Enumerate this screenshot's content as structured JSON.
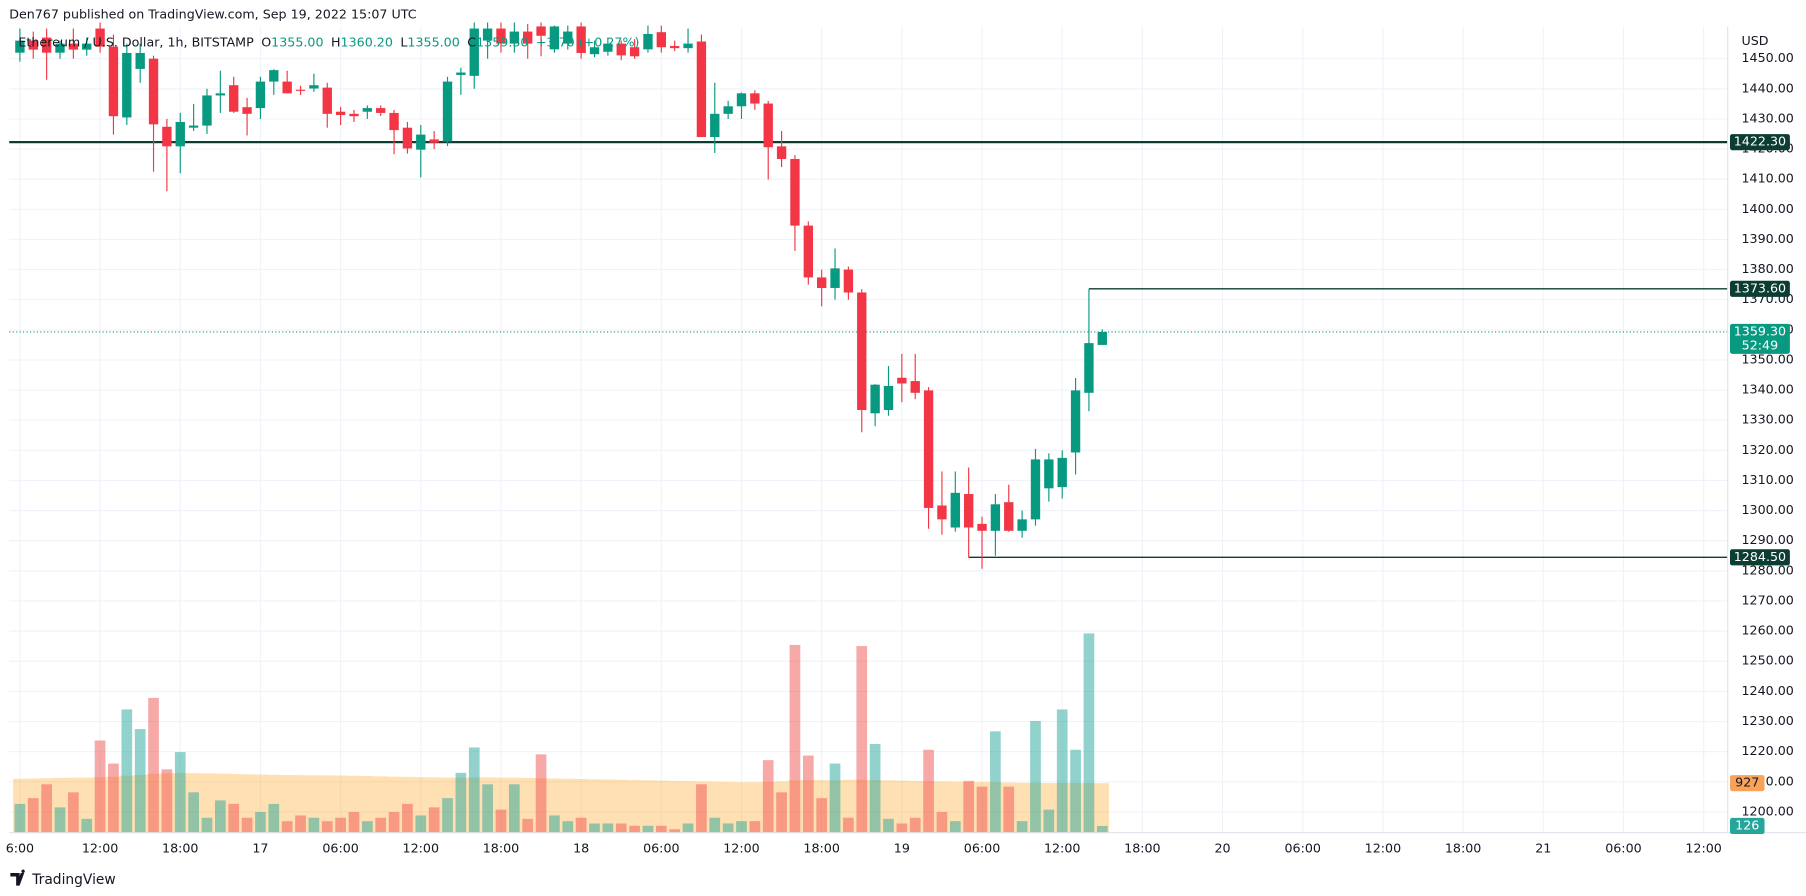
{
  "chart_data": {
    "type": "candlestick",
    "header": "Den767 published on TradingView.com, Sep 19, 2022 15:07 UTC",
    "legend": {
      "symbol": "Ethereum / U.S. Dollar, 1h, BITSTAMP",
      "o": "O",
      "open": "1355.00",
      "h": "H",
      "high": "1360.20",
      "l": "L",
      "low": "1355.00",
      "c": "C",
      "close": "1359.30",
      "change": "+3.70 (+0.27%)"
    },
    "currency": "USD",
    "footer": "TradingView",
    "up_color": "#089981",
    "down_color": "#f23645",
    "open": [
      1452,
      1456,
      1457,
      1452,
      1455,
      1453,
      1460,
      1454,
      1430.5,
      1446.6,
      1450,
      1427.4,
      1420.9,
      1427.1,
      1427.8,
      1437.8,
      1441.2,
      1433.9,
      1433.6,
      1442.4,
      1442.4,
      1439.7,
      1440.1,
      1440.4,
      1432.4,
      1431.7,
      1432.4,
      1433.6,
      1432,
      1427.1,
      1419.8,
      1423.2,
      1422.5,
      1444.6,
      1444.3,
      1456,
      1460,
      1455,
      1459,
      1460.7,
      1453.1,
      1455,
      1460.7,
      1451.5,
      1452.3,
      1455,
      1453.8,
      1453.1,
      1458.8,
      1454.2,
      1453.5,
      1455.7,
      1424,
      1431.7,
      1434.2,
      1438.5,
      1435.1,
      1420.9,
      1416.7,
      1394.6,
      1377.4,
      1373.9,
      1380,
      1372.4,
      1332.3,
      1333.4,
      1344.1,
      1343,
      1339.9,
      1301.7,
      1294.4,
      1305.5,
      1295.6,
      1293.3,
      1302.8,
      1293.3,
      1297.1,
      1307.4,
      1307.8,
      1319.3,
      1339.1,
      1355
    ],
    "high": [
      1460,
      1459,
      1460,
      1456,
      1460,
      1457,
      1462,
      1458,
      1455,
      1455,
      1451,
      1430,
      1432,
      1435,
      1440,
      1446,
      1444,
      1437,
      1444,
      1446.5,
      1446,
      1441,
      1445,
      1442,
      1434,
      1433,
      1434.5,
      1434.5,
      1433,
      1429,
      1428,
      1426,
      1444,
      1447,
      1462,
      1462,
      1462,
      1462,
      1461.5,
      1462,
      1461,
      1461,
      1462,
      1456,
      1457,
      1456,
      1456.5,
      1461,
      1461,
      1456,
      1460,
      1458,
      1442,
      1436,
      1438.8,
      1439.5,
      1436,
      1426,
      1418,
      1396,
      1380,
      1387,
      1381,
      1373.5,
      1342,
      1348,
      1352,
      1352,
      1341,
      1313,
      1313,
      1314.3,
      1298,
      1305.5,
      1308.6,
      1300,
      1320.5,
      1319,
      1320,
      1344,
      1373.6,
      1360.2
    ],
    "low": [
      1449,
      1450,
      1443,
      1450,
      1450,
      1451,
      1452,
      1424.8,
      1428,
      1442,
      1412.5,
      1406,
      1412,
      1426,
      1425,
      1432,
      1432,
      1424.5,
      1430,
      1438,
      1438.5,
      1438,
      1439,
      1427.1,
      1428,
      1429,
      1430,
      1431,
      1418.3,
      1418.5,
      1410.6,
      1420,
      1421,
      1438,
      1440,
      1450,
      1452,
      1452,
      1450,
      1450.8,
      1452,
      1453,
      1450,
      1450.5,
      1451,
      1449.5,
      1450,
      1452,
      1452,
      1452.5,
      1452,
      1424,
      1418.7,
      1430,
      1430,
      1433,
      1409.9,
      1414,
      1386.2,
      1375,
      1367.8,
      1370,
      1370,
      1326,
      1328,
      1331.5,
      1336,
      1337,
      1294,
      1292,
      1293,
      1284.5,
      1280.7,
      1285,
      1293,
      1291,
      1295,
      1303,
      1304,
      1312,
      1333,
      1355
    ],
    "close": [
      1456,
      1453,
      1452,
      1455,
      1453,
      1455,
      1454,
      1430.9,
      1451.9,
      1451.9,
      1428.2,
      1420.9,
      1429,
      1427.8,
      1437.8,
      1438.5,
      1432.4,
      1431.7,
      1442.4,
      1446.2,
      1438.5,
      1439.5,
      1441.2,
      1431.7,
      1431.3,
      1430.9,
      1433.6,
      1432,
      1426.3,
      1420.2,
      1424.8,
      1422.1,
      1442.4,
      1445.4,
      1460,
      1460,
      1455,
      1459,
      1455,
      1457.6,
      1460.7,
      1459,
      1451.9,
      1453.8,
      1455,
      1451.1,
      1450.8,
      1458.2,
      1453.8,
      1453.5,
      1455,
      1424,
      1431.7,
      1434.2,
      1438.5,
      1435.1,
      1420.6,
      1416.7,
      1394.6,
      1377.4,
      1373.9,
      1380.4,
      1372.4,
      1333.4,
      1341.8,
      1341.4,
      1342.2,
      1339.1,
      1300.9,
      1297.1,
      1305.9,
      1294.4,
      1293.3,
      1302.1,
      1293.3,
      1297.1,
      1317,
      1317,
      1317.5,
      1339.9,
      1355.6,
      1359.3
    ],
    "volume": {
      "up_color": "rgba(38,166,154,0.5)",
      "down_color": "rgba(239,83,80,0.5)",
      "ylim": [
        0,
        15090
      ],
      "values": [
        539,
        647,
        906,
        474,
        755,
        259,
        1725,
        1294,
        2307,
        1940,
        2523,
        1186,
        1509,
        755,
        280,
        604,
        539,
        280,
        388,
        539,
        216,
        323,
        280,
        216,
        280,
        388,
        216,
        280,
        388,
        539,
        323,
        474,
        647,
        1121,
        1595,
        906,
        431,
        906,
        259,
        1466,
        323,
        216,
        280,
        172,
        172,
        172,
        129,
        129,
        129,
        65,
        172,
        906,
        280,
        172,
        216,
        216,
        1358,
        755,
        3514,
        1444,
        647,
        1294,
        280,
        3493,
        1660,
        259,
        172,
        280,
        1552,
        388,
        216,
        970,
        862,
        1897,
        862,
        216,
        2091,
        431,
        2307,
        1552,
        3730,
        126
      ]
    },
    "volume_ma": {
      "color": "#ff9800",
      "values": [
        1010,
        1015,
        1020,
        1025,
        1030,
        1030,
        1040,
        1050,
        1065,
        1080,
        1100,
        1110,
        1115,
        1115,
        1110,
        1105,
        1100,
        1095,
        1090,
        1085,
        1080,
        1078,
        1075,
        1072,
        1070,
        1065,
        1060,
        1055,
        1050,
        1045,
        1040,
        1035,
        1030,
        1030,
        1035,
        1035,
        1030,
        1030,
        1025,
        1020,
        1015,
        1010,
        1005,
        1000,
        995,
        990,
        985,
        980,
        975,
        970,
        965,
        960,
        955,
        950,
        945,
        945,
        950,
        960,
        980,
        985,
        985,
        980,
        990,
        990,
        985,
        980,
        975,
        970,
        965,
        960,
        955,
        950,
        950,
        945,
        940,
        935,
        935,
        930,
        930,
        930,
        928,
        927
      ]
    },
    "ylim": [
      1193.1,
      1460.7
    ],
    "yticks": [
      {
        "value": 1200,
        "label": "1200.00"
      },
      {
        "value": 1210,
        "label": "1210.00"
      },
      {
        "value": 1220,
        "label": "1220.00"
      },
      {
        "value": 1230,
        "label": "1230.00"
      },
      {
        "value": 1240,
        "label": "1240.00"
      },
      {
        "value": 1250,
        "label": "1250.00"
      },
      {
        "value": 1260,
        "label": "1260.00"
      },
      {
        "value": 1270,
        "label": "1270.00"
      },
      {
        "value": 1280,
        "label": "1280.00"
      },
      {
        "value": 1290,
        "label": "1290.00"
      },
      {
        "value": 1300,
        "label": "1300.00"
      },
      {
        "value": 1310,
        "label": "1310.00"
      },
      {
        "value": 1320,
        "label": "1320.00"
      },
      {
        "value": 1330,
        "label": "1330.00"
      },
      {
        "value": 1340,
        "label": "1340.00"
      },
      {
        "value": 1350,
        "label": "1350.00"
      },
      {
        "value": 1360,
        "label": "1360.00"
      },
      {
        "value": 1370,
        "label": "1370.00"
      },
      {
        "value": 1380,
        "label": "1380.00"
      },
      {
        "value": 1390,
        "label": "1390.00"
      },
      {
        "value": 1400,
        "label": "1400.00"
      },
      {
        "value": 1410,
        "label": "1410.00"
      },
      {
        "value": 1420,
        "label": "1420.00"
      },
      {
        "value": 1430,
        "label": "1430.00"
      },
      {
        "value": 1440,
        "label": "1440.00"
      },
      {
        "value": 1450,
        "label": "1450.00"
      }
    ],
    "xlim": [
      -0.8,
      127.8
    ],
    "xticks": [
      {
        "value": 0,
        "label": "6:00"
      },
      {
        "value": 6,
        "label": "12:00"
      },
      {
        "value": 12,
        "label": "18:00"
      },
      {
        "value": 18,
        "label": "17"
      },
      {
        "value": 24,
        "label": "06:00"
      },
      {
        "value": 30,
        "label": "12:00"
      },
      {
        "value": 36,
        "label": "18:00"
      },
      {
        "value": 42,
        "label": "18"
      },
      {
        "value": 48,
        "label": "06:00"
      },
      {
        "value": 54,
        "label": "12:00"
      },
      {
        "value": 60,
        "label": "18:00"
      },
      {
        "value": 66,
        "label": "19"
      },
      {
        "value": 72,
        "label": "06:00"
      },
      {
        "value": 78,
        "label": "12:00"
      },
      {
        "value": 84,
        "label": "18:00"
      },
      {
        "value": 90,
        "label": "20"
      },
      {
        "value": 96,
        "label": "06:00"
      },
      {
        "value": 102,
        "label": "12:00"
      },
      {
        "value": 108,
        "label": "18:00"
      },
      {
        "value": 114,
        "label": "21"
      },
      {
        "value": 120,
        "label": "06:00"
      },
      {
        "value": 126,
        "label": "12:00"
      }
    ],
    "grid": true,
    "level_color": "#0b3d33",
    "levels": [
      {
        "value": 1422.3,
        "label": "1422.30"
      },
      {
        "value": 1373.6,
        "label": "1373.60"
      },
      {
        "value": 1284.5,
        "label": "1284.50"
      }
    ],
    "last": {
      "value": 1359.3,
      "label": "1359.30",
      "countdown": "52:49"
    }
  }
}
